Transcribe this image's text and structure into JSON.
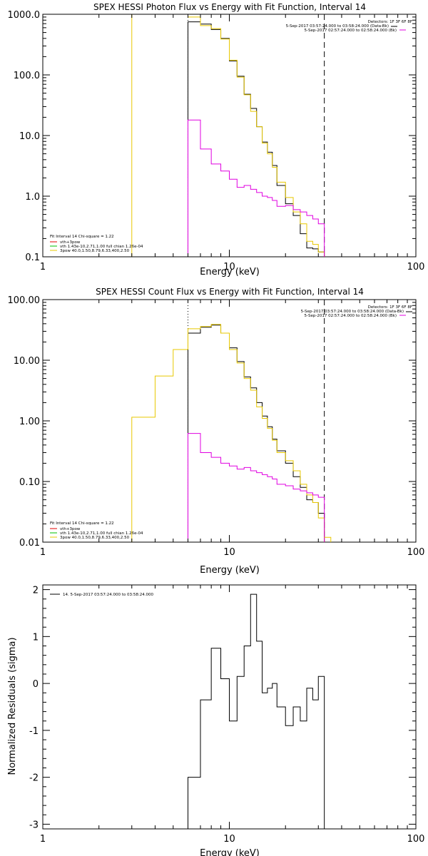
{
  "colors": {
    "black": "#000000",
    "yellow": "#e8c800",
    "magenta": "#e000e0",
    "red": "#e00000",
    "green": "#00c000",
    "purple": "#8000ff"
  },
  "chart_data": [
    {
      "type": "line",
      "title": "SPEX HESSI Photon Flux vs Energy with Fit Function, Interval 14",
      "xlabel": "Energy (keV)",
      "ylabel": "",
      "xscale": "log",
      "yscale": "log",
      "xlim": [
        1,
        100
      ],
      "ylim": [
        0.1,
        1000
      ],
      "xticks": [
        "1",
        "10",
        "100"
      ],
      "yticks": [
        "0.1",
        "1.0",
        "10.0",
        "100.0",
        "1000.0"
      ],
      "legend_right": [
        "Detectors: 1F 3F 6F 8F",
        "5-Sep-2017 03:57:24.000 to 03:58:24.000 (Data-Bk)",
        "5-Sep-2017 02:57:24.000 to 02:58:24.000 (Bk)"
      ],
      "legend_left": [
        "Fit Interval 14   Chi-square = 1.22",
        "vth+3pow",
        "vth 1.43e-10,2.71,1.00   full chian 1.26e-04",
        "3pow 40.0,1.50,8.79,6.33,400,2.50"
      ],
      "vertical_lines": [
        {
          "x": 3,
          "style": "solid-yellow"
        },
        {
          "x": 6,
          "style": "dotted"
        },
        {
          "x": 32.3,
          "style": "dashed"
        }
      ],
      "edges": [
        6,
        7,
        8,
        9,
        10,
        11,
        12,
        13,
        14,
        15,
        16,
        17,
        18,
        20,
        22,
        24,
        26,
        28,
        30,
        32.3
      ],
      "series": [
        {
          "values": [
            750,
            690,
            560,
            400,
            170,
            95,
            48,
            28,
            14,
            7.8,
            5.3,
            3.2,
            1.5,
            0.75,
            0.48,
            0.24,
            0.14,
            0.135,
            0.12
          ],
          "color": "black"
        },
        {
          "values": [
            900,
            650,
            580,
            390,
            175,
            92,
            47,
            25,
            14,
            7.5,
            5.0,
            3.0,
            1.7,
            0.95,
            0.55,
            0.35,
            0.18,
            0.16,
            0.12
          ],
          "color": "yellow"
        },
        {
          "values": [
            18,
            6.0,
            3.4,
            2.6,
            1.9,
            1.4,
            1.5,
            1.3,
            1.15,
            1.0,
            0.95,
            0.85,
            0.68,
            0.7,
            0.6,
            0.55,
            0.48,
            0.42,
            0.35
          ],
          "color": "magenta"
        }
      ]
    },
    {
      "type": "line",
      "title": "SPEX HESSI Count Flux vs Energy with Fit Function, Interval 14",
      "xlabel": "Energy (keV)",
      "ylabel": "",
      "xscale": "log",
      "yscale": "log",
      "xlim": [
        1,
        100
      ],
      "ylim": [
        0.01,
        100
      ],
      "xticks": [
        "1",
        "10",
        "100"
      ],
      "yticks": [
        "0.01",
        "0.10",
        "1.00",
        "10.00",
        "100.00"
      ],
      "legend_right": [
        "Detectors: 1F 3F 6F 8F",
        "5-Sep-2017 03:57:24.000 to 03:58:24.000 (Data-Bk)",
        "5-Sep-2017 02:57:24.000 to 02:58:24.000 (Bk)"
      ],
      "legend_left": [
        "Fit Interval 14   Chi-square = 1.22",
        "vth+3pow",
        "vth 1.43e-10,2.71,1.00   full chian 1.26e-04",
        "3pow 40.0,1.50,8.79,6.33,400,2.50"
      ],
      "vertical_lines": [
        {
          "x": 6,
          "style": "dotted"
        },
        {
          "x": 32.3,
          "style": "dashed"
        }
      ],
      "edges": [
        6,
        7,
        8,
        9,
        10,
        11,
        12,
        13,
        14,
        15,
        16,
        17,
        18,
        20,
        22,
        24,
        26,
        28,
        30,
        32.3
      ],
      "yellow_low_edges": [
        3,
        4,
        5,
        6
      ],
      "yellow_low_values": [
        1.15,
        5.5,
        15
      ],
      "series": [
        {
          "values": [
            28,
            35,
            38,
            28,
            16,
            9.5,
            5.3,
            3.5,
            2.0,
            1.2,
            0.8,
            0.5,
            0.32,
            0.2,
            0.12,
            0.08,
            0.05,
            0.045,
            0.03
          ],
          "color": "black"
        },
        {
          "values": [
            33,
            36,
            39,
            28,
            15,
            9.0,
            5.0,
            3.2,
            1.7,
            1.1,
            0.75,
            0.48,
            0.3,
            0.22,
            0.15,
            0.09,
            0.06,
            0.045,
            0.025
          ],
          "color": "yellow"
        },
        {
          "values": [
            0.62,
            0.3,
            0.25,
            0.2,
            0.18,
            0.16,
            0.17,
            0.15,
            0.14,
            0.13,
            0.12,
            0.11,
            0.09,
            0.085,
            0.075,
            0.07,
            0.065,
            0.06,
            0.055
          ],
          "color": "magenta"
        }
      ],
      "yellow_tail": {
        "edges": [
          32.3,
          35
        ],
        "values": [
          0.012
        ]
      }
    },
    {
      "type": "line",
      "title": "",
      "xlabel": "Energy (keV)",
      "ylabel": "Normalized Residuals (sigma)",
      "xscale": "log",
      "yscale": "linear",
      "xlim": [
        1,
        100
      ],
      "ylim": [
        -3.1,
        2.1
      ],
      "xticks": [
        "1",
        "10",
        "100"
      ],
      "yticks": [
        "-3",
        "-2",
        "-1",
        "0",
        "1",
        "2"
      ],
      "legend": "14.  5-Sep-2017 03:57:24.000 to 03:58:24.000",
      "edges": [
        6,
        7,
        8,
        9,
        10,
        11,
        12,
        13,
        14,
        15,
        16,
        17,
        18,
        20,
        22,
        24,
        26,
        28,
        30,
        32.3
      ],
      "series": [
        {
          "values": [
            -2.0,
            -0.35,
            0.75,
            0.1,
            -0.8,
            0.15,
            0.8,
            1.9,
            0.9,
            -0.2,
            -0.1,
            0.0,
            -0.5,
            -0.9,
            -0.5,
            -0.8,
            -0.1,
            -0.35,
            0.15
          ],
          "color": "black"
        }
      ]
    }
  ]
}
